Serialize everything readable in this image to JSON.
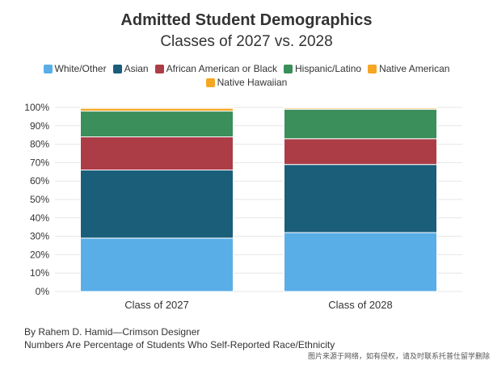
{
  "chart_data": {
    "type": "bar",
    "stacked": true,
    "title": "Admitted Student Demographics",
    "subtitle": "Classes of 2027 vs. 2028",
    "categories": [
      "Class of 2027",
      "Class of 2028"
    ],
    "series": [
      {
        "name": "White/Other",
        "color": "#5aaee8",
        "values": [
          29,
          32
        ]
      },
      {
        "name": "Asian",
        "color": "#1b5e7a",
        "values": [
          37,
          37
        ]
      },
      {
        "name": "African American or Black",
        "color": "#ac3d47",
        "values": [
          18,
          14
        ]
      },
      {
        "name": "Hispanic/Latino",
        "color": "#3a8f5a",
        "values": [
          14,
          16
        ]
      },
      {
        "name": "Native American",
        "color": "#f5a623",
        "values": [
          1.5,
          0.7
        ]
      },
      {
        "name": "Native Hawaiian",
        "color": "#f5a623",
        "values": [
          0.5,
          0.3
        ]
      }
    ],
    "ylim": [
      0,
      100
    ],
    "yticks": [
      "0%",
      "10%",
      "20%",
      "30%",
      "40%",
      "50%",
      "60%",
      "70%",
      "80%",
      "90%",
      "100%"
    ],
    "grid": true,
    "legend_position": "top"
  },
  "footer": {
    "byline": "By Rahem D. Hamid—Crimson Designer",
    "note": "Numbers Are Percentage of Students Who Self-Reported Race/Ethnicity"
  },
  "watermark": "图片来源于网络，如有侵权，请及时联系托普仕留学删除"
}
